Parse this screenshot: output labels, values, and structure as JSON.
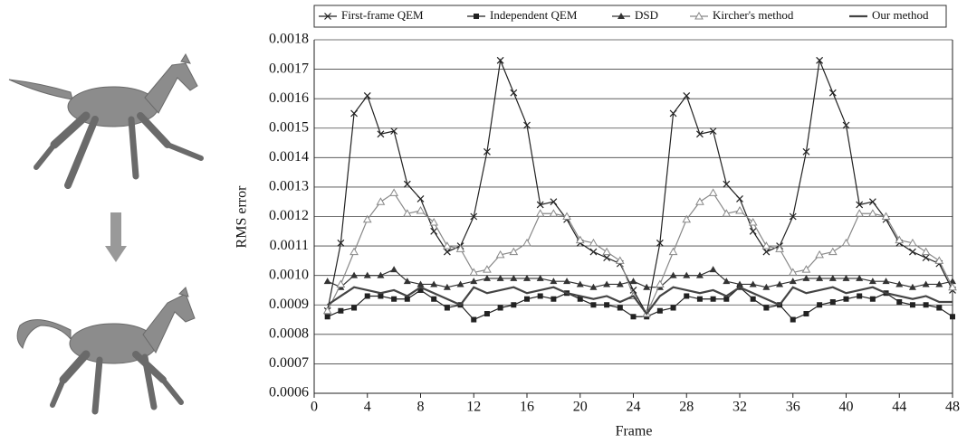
{
  "chart_data": {
    "type": "line",
    "y_label": "RMS error",
    "x_label": "Frame",
    "x": [
      1,
      2,
      3,
      4,
      5,
      6,
      7,
      8,
      9,
      10,
      11,
      12,
      13,
      14,
      15,
      16,
      17,
      18,
      19,
      20,
      21,
      22,
      23,
      24,
      25,
      26,
      27,
      28,
      29,
      30,
      31,
      32,
      33,
      34,
      35,
      36,
      37,
      38,
      39,
      40,
      41,
      42,
      43,
      44,
      45,
      46,
      47,
      48
    ],
    "xlim": [
      0,
      48
    ],
    "xticks": [
      0,
      4,
      8,
      12,
      16,
      20,
      24,
      28,
      32,
      36,
      40,
      44,
      48
    ],
    "ylim": [
      0.0006,
      0.0018
    ],
    "yticks": [
      0.0006,
      0.0007,
      0.0008,
      0.0009,
      {
        "value": 0.001,
        "label": "0.0010"
      },
      0.0011,
      0.0012,
      0.0013,
      0.0014,
      0.0015,
      0.0016,
      0.0017,
      0.0018
    ],
    "grid": true,
    "legend": "top",
    "series": [
      {
        "name": "First-frame QEM",
        "color": "#222222",
        "marker": "x",
        "values": [
          0.00088,
          0.00111,
          0.00155,
          0.00161,
          0.00148,
          0.00149,
          0.00131,
          0.00126,
          0.00115,
          0.00108,
          0.0011,
          0.0012,
          0.00142,
          0.00173,
          0.00162,
          0.00151,
          0.00124,
          0.00125,
          0.00119,
          0.00111,
          0.00108,
          0.00106,
          0.00104,
          0.00095,
          0.00087,
          0.00111,
          0.00155,
          0.00161,
          0.00148,
          0.00149,
          0.00131,
          0.00126,
          0.00115,
          0.00108,
          0.0011,
          0.0012,
          0.00142,
          0.00173,
          0.00162,
          0.00151,
          0.00124,
          0.00125,
          0.00119,
          0.00111,
          0.00108,
          0.00106,
          0.00104,
          0.00095
        ]
      },
      {
        "name": "Independent QEM",
        "color": "#222222",
        "marker": "square",
        "values": [
          0.00086,
          0.00088,
          0.00089,
          0.00093,
          0.00093,
          0.00092,
          0.00092,
          0.00095,
          0.00092,
          0.00089,
          0.0009,
          0.00085,
          0.00087,
          0.00089,
          0.0009,
          0.00092,
          0.00093,
          0.00092,
          0.00094,
          0.00092,
          0.0009,
          0.0009,
          0.00089,
          0.00086,
          0.00086,
          0.00088,
          0.00089,
          0.00093,
          0.00092,
          0.00092,
          0.00092,
          0.00096,
          0.00092,
          0.00089,
          0.0009,
          0.00085,
          0.00087,
          0.0009,
          0.00091,
          0.00092,
          0.00093,
          0.00092,
          0.00094,
          0.00091,
          0.0009,
          0.0009,
          0.00089,
          0.00086
        ]
      },
      {
        "name": "DSD",
        "color": "#333333",
        "marker": "triangle",
        "values": [
          0.00098,
          0.00096,
          0.001,
          0.001,
          0.001,
          0.00102,
          0.00098,
          0.00097,
          0.00097,
          0.00096,
          0.00097,
          0.00098,
          0.00099,
          0.00099,
          0.00099,
          0.00099,
          0.00099,
          0.00098,
          0.00098,
          0.00097,
          0.00096,
          0.00097,
          0.00097,
          0.00098,
          0.00096,
          0.00096,
          0.001,
          0.001,
          0.001,
          0.00102,
          0.00098,
          0.00097,
          0.00097,
          0.00096,
          0.00097,
          0.00098,
          0.00099,
          0.00099,
          0.00099,
          0.00099,
          0.00099,
          0.00098,
          0.00098,
          0.00097,
          0.00096,
          0.00097,
          0.00097,
          0.00098
        ]
      },
      {
        "name": "Kircher's method",
        "color": "#888888",
        "marker": "triangle-open",
        "values": [
          0.00088,
          0.00097,
          0.00108,
          0.00119,
          0.00125,
          0.00128,
          0.00121,
          0.00122,
          0.00118,
          0.0011,
          0.00109,
          0.00101,
          0.00102,
          0.00107,
          0.00108,
          0.00111,
          0.00121,
          0.00121,
          0.0012,
          0.00112,
          0.00111,
          0.00108,
          0.00105,
          0.00093,
          0.00087,
          0.00097,
          0.00108,
          0.00119,
          0.00125,
          0.00128,
          0.00121,
          0.00122,
          0.00118,
          0.0011,
          0.00109,
          0.00101,
          0.00102,
          0.00107,
          0.00108,
          0.00111,
          0.00121,
          0.00121,
          0.0012,
          0.00112,
          0.00111,
          0.00108,
          0.00105,
          0.00096
        ]
      },
      {
        "name": "Our method",
        "color": "#444444",
        "marker": "none",
        "values": [
          0.0009,
          0.00093,
          0.00096,
          0.00095,
          0.00094,
          0.00095,
          0.00093,
          0.00096,
          0.00094,
          0.00092,
          0.0009,
          0.00096,
          0.00094,
          0.00095,
          0.00096,
          0.00094,
          0.00095,
          0.00096,
          0.00094,
          0.00093,
          0.00092,
          0.00093,
          0.00091,
          0.00093,
          0.00087,
          0.00093,
          0.00096,
          0.00095,
          0.00094,
          0.00095,
          0.00093,
          0.00096,
          0.00094,
          0.00092,
          0.0009,
          0.00096,
          0.00094,
          0.00095,
          0.00096,
          0.00094,
          0.00095,
          0.00096,
          0.00094,
          0.00093,
          0.00092,
          0.00093,
          0.00091,
          0.00091
        ]
      }
    ]
  }
}
